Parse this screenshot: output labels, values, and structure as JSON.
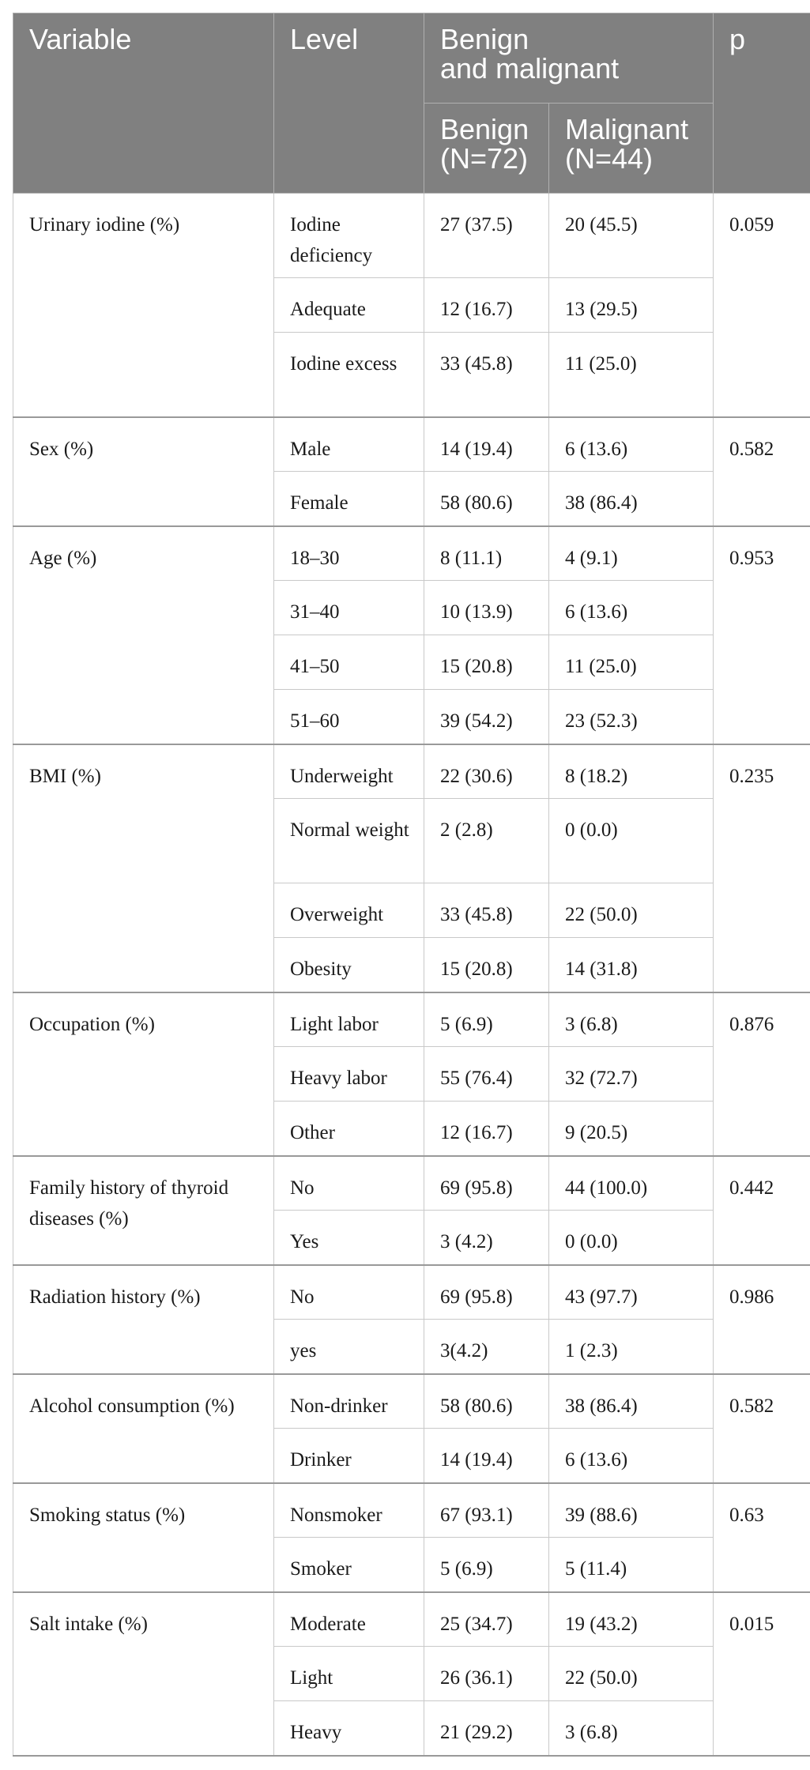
{
  "header": {
    "variable": "Variable",
    "level": "Level",
    "group": "Benign and malignant",
    "group_line1": "Benign",
    "group_line2": "and malignant",
    "p": "p",
    "benign_line1": "Benign",
    "benign_line2": "(N=72)",
    "malignant_line1": "Malignant",
    "malignant_line2": "(N=44)"
  },
  "groups": [
    {
      "variable": "Urinary iodine (%)",
      "p": "0.059",
      "rows": [
        {
          "level": "Iodine deficiency",
          "benign": "27 (37.5)",
          "malignant": "20 (45.5)"
        },
        {
          "level": "Adequate",
          "benign": "12 (16.7)",
          "malignant": "13 (29.5)"
        },
        {
          "level": "Iodine excess",
          "benign": "33 (45.8)",
          "malignant": "11 (25.0)"
        }
      ]
    },
    {
      "variable": "Sex (%)",
      "p": "0.582",
      "rows": [
        {
          "level": "Male",
          "benign": "14 (19.4)",
          "malignant": "6 (13.6)"
        },
        {
          "level": "Female",
          "benign": "58 (80.6)",
          "malignant": "38 (86.4)"
        }
      ]
    },
    {
      "variable": "Age (%)",
      "p": "0.953",
      "rows": [
        {
          "level": "18–30",
          "benign": "8 (11.1)",
          "malignant": "4 (9.1)"
        },
        {
          "level": "31–40",
          "benign": "10 (13.9)",
          "malignant": "6 (13.6)"
        },
        {
          "level": "41–50",
          "benign": "15 (20.8)",
          "malignant": "11 (25.0)"
        },
        {
          "level": "51–60",
          "benign": "39 (54.2)",
          "malignant": "23 (52.3)"
        }
      ]
    },
    {
      "variable": "BMI (%)",
      "p": "0.235",
      "rows": [
        {
          "level": "Underweight",
          "benign": "22 (30.6)",
          "malignant": "8 (18.2)"
        },
        {
          "level": "Normal weight",
          "benign": "2 (2.8)",
          "malignant": "0 (0.0)"
        },
        {
          "level": "Overweight",
          "benign": "33 (45.8)",
          "malignant": "22 (50.0)"
        },
        {
          "level": "Obesity",
          "benign": "15 (20.8)",
          "malignant": "14 (31.8)"
        }
      ]
    },
    {
      "variable": "Occupation (%)",
      "p": "0.876",
      "rows": [
        {
          "level": "Light labor",
          "benign": "5 (6.9)",
          "malignant": "3 (6.8)"
        },
        {
          "level": "Heavy labor",
          "benign": "55 (76.4)",
          "malignant": "32 (72.7)"
        },
        {
          "level": "Other",
          "benign": "12 (16.7)",
          "malignant": "9 (20.5)"
        }
      ]
    },
    {
      "variable": "Family history of thyroid diseases (%)",
      "p": "0.442",
      "rows": [
        {
          "level": "No",
          "benign": "69 (95.8)",
          "malignant": "44 (100.0)"
        },
        {
          "level": "Yes",
          "benign": "3 (4.2)",
          "malignant": "0 (0.0)"
        }
      ]
    },
    {
      "variable": "Radiation history (%)",
      "p": "0.986",
      "rows": [
        {
          "level": "No",
          "benign": "69 (95.8)",
          "malignant": "43 (97.7)"
        },
        {
          "level": "yes",
          "benign": "3(4.2)",
          "malignant": "1 (2.3)"
        }
      ]
    },
    {
      "variable": "Alcohol consumption (%)",
      "p": "0.582",
      "rows": [
        {
          "level": "Non-drinker",
          "benign": "58 (80.6)",
          "malignant": "38 (86.4)"
        },
        {
          "level": "Drinker",
          "benign": "14 (19.4)",
          "malignant": "6 (13.6)"
        }
      ]
    },
    {
      "variable": "Smoking status (%)",
      "p": "0.63",
      "rows": [
        {
          "level": "Nonsmoker",
          "benign": "67 (93.1)",
          "malignant": "39 (88.6)"
        },
        {
          "level": "Smoker",
          "benign": "5 (6.9)",
          "malignant": "5 (11.4)"
        }
      ]
    },
    {
      "variable": "Salt intake (%)",
      "p": "0.015",
      "rows": [
        {
          "level": "Moderate",
          "benign": "25 (34.7)",
          "malignant": "19 (43.2)"
        },
        {
          "level": "Light",
          "benign": "26 (36.1)",
          "malignant": "22 (50.0)"
        },
        {
          "level": "Heavy",
          "benign": "21 (29.2)",
          "malignant": "3 (6.8)"
        }
      ]
    }
  ]
}
